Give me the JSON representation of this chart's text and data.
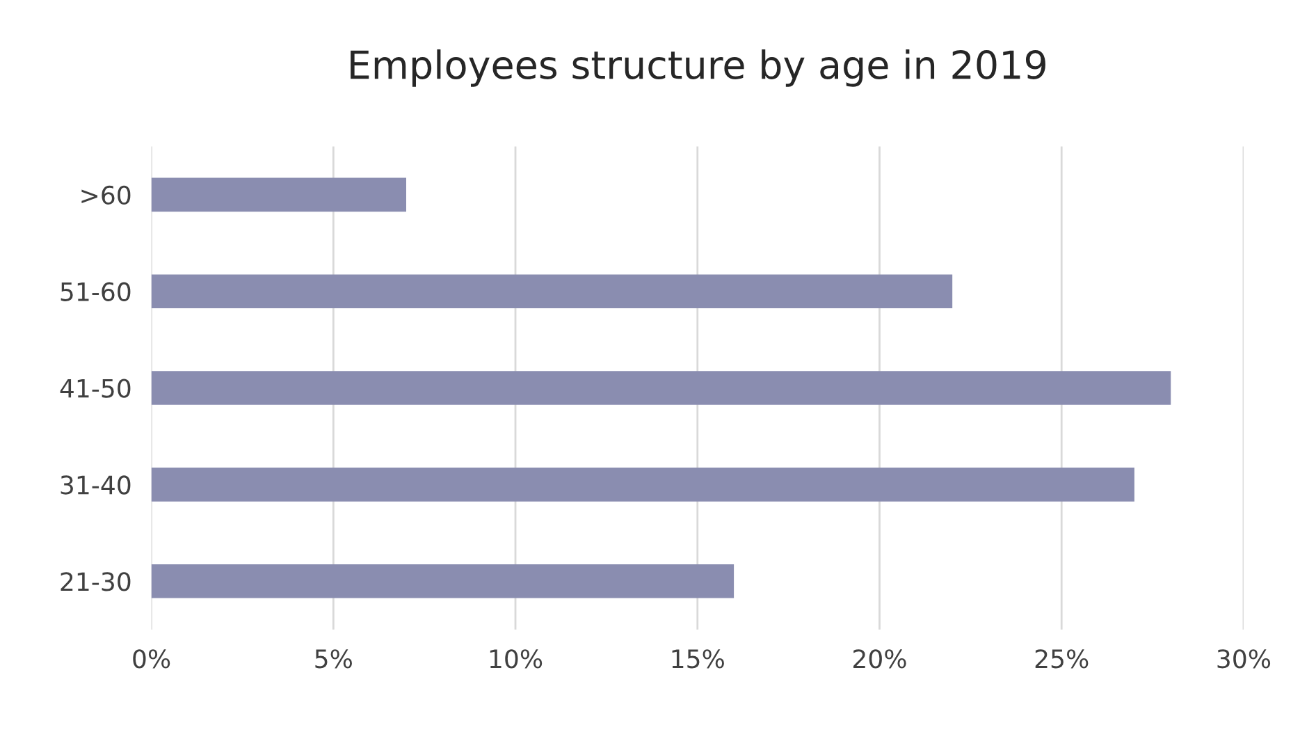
{
  "chart_data": {
    "type": "bar",
    "orientation": "horizontal",
    "title": "Employees structure by age in 2019",
    "categories": [
      ">60",
      "51-60",
      "41-50",
      "31-40",
      "21-30"
    ],
    "values": [
      7,
      22,
      28,
      27,
      16
    ],
    "color": "#8a8db0",
    "xlim": [
      0,
      30
    ],
    "xticks": [
      {
        "value": 0,
        "label": "0%"
      },
      {
        "value": 5,
        "label": "5%"
      },
      {
        "value": 10,
        "label": "10%"
      },
      {
        "value": 15,
        "label": "15%"
      },
      {
        "value": 20,
        "label": "20%"
      },
      {
        "value": 25,
        "label": "25%"
      },
      {
        "value": 30,
        "label": "30%"
      }
    ],
    "grid": "x"
  }
}
